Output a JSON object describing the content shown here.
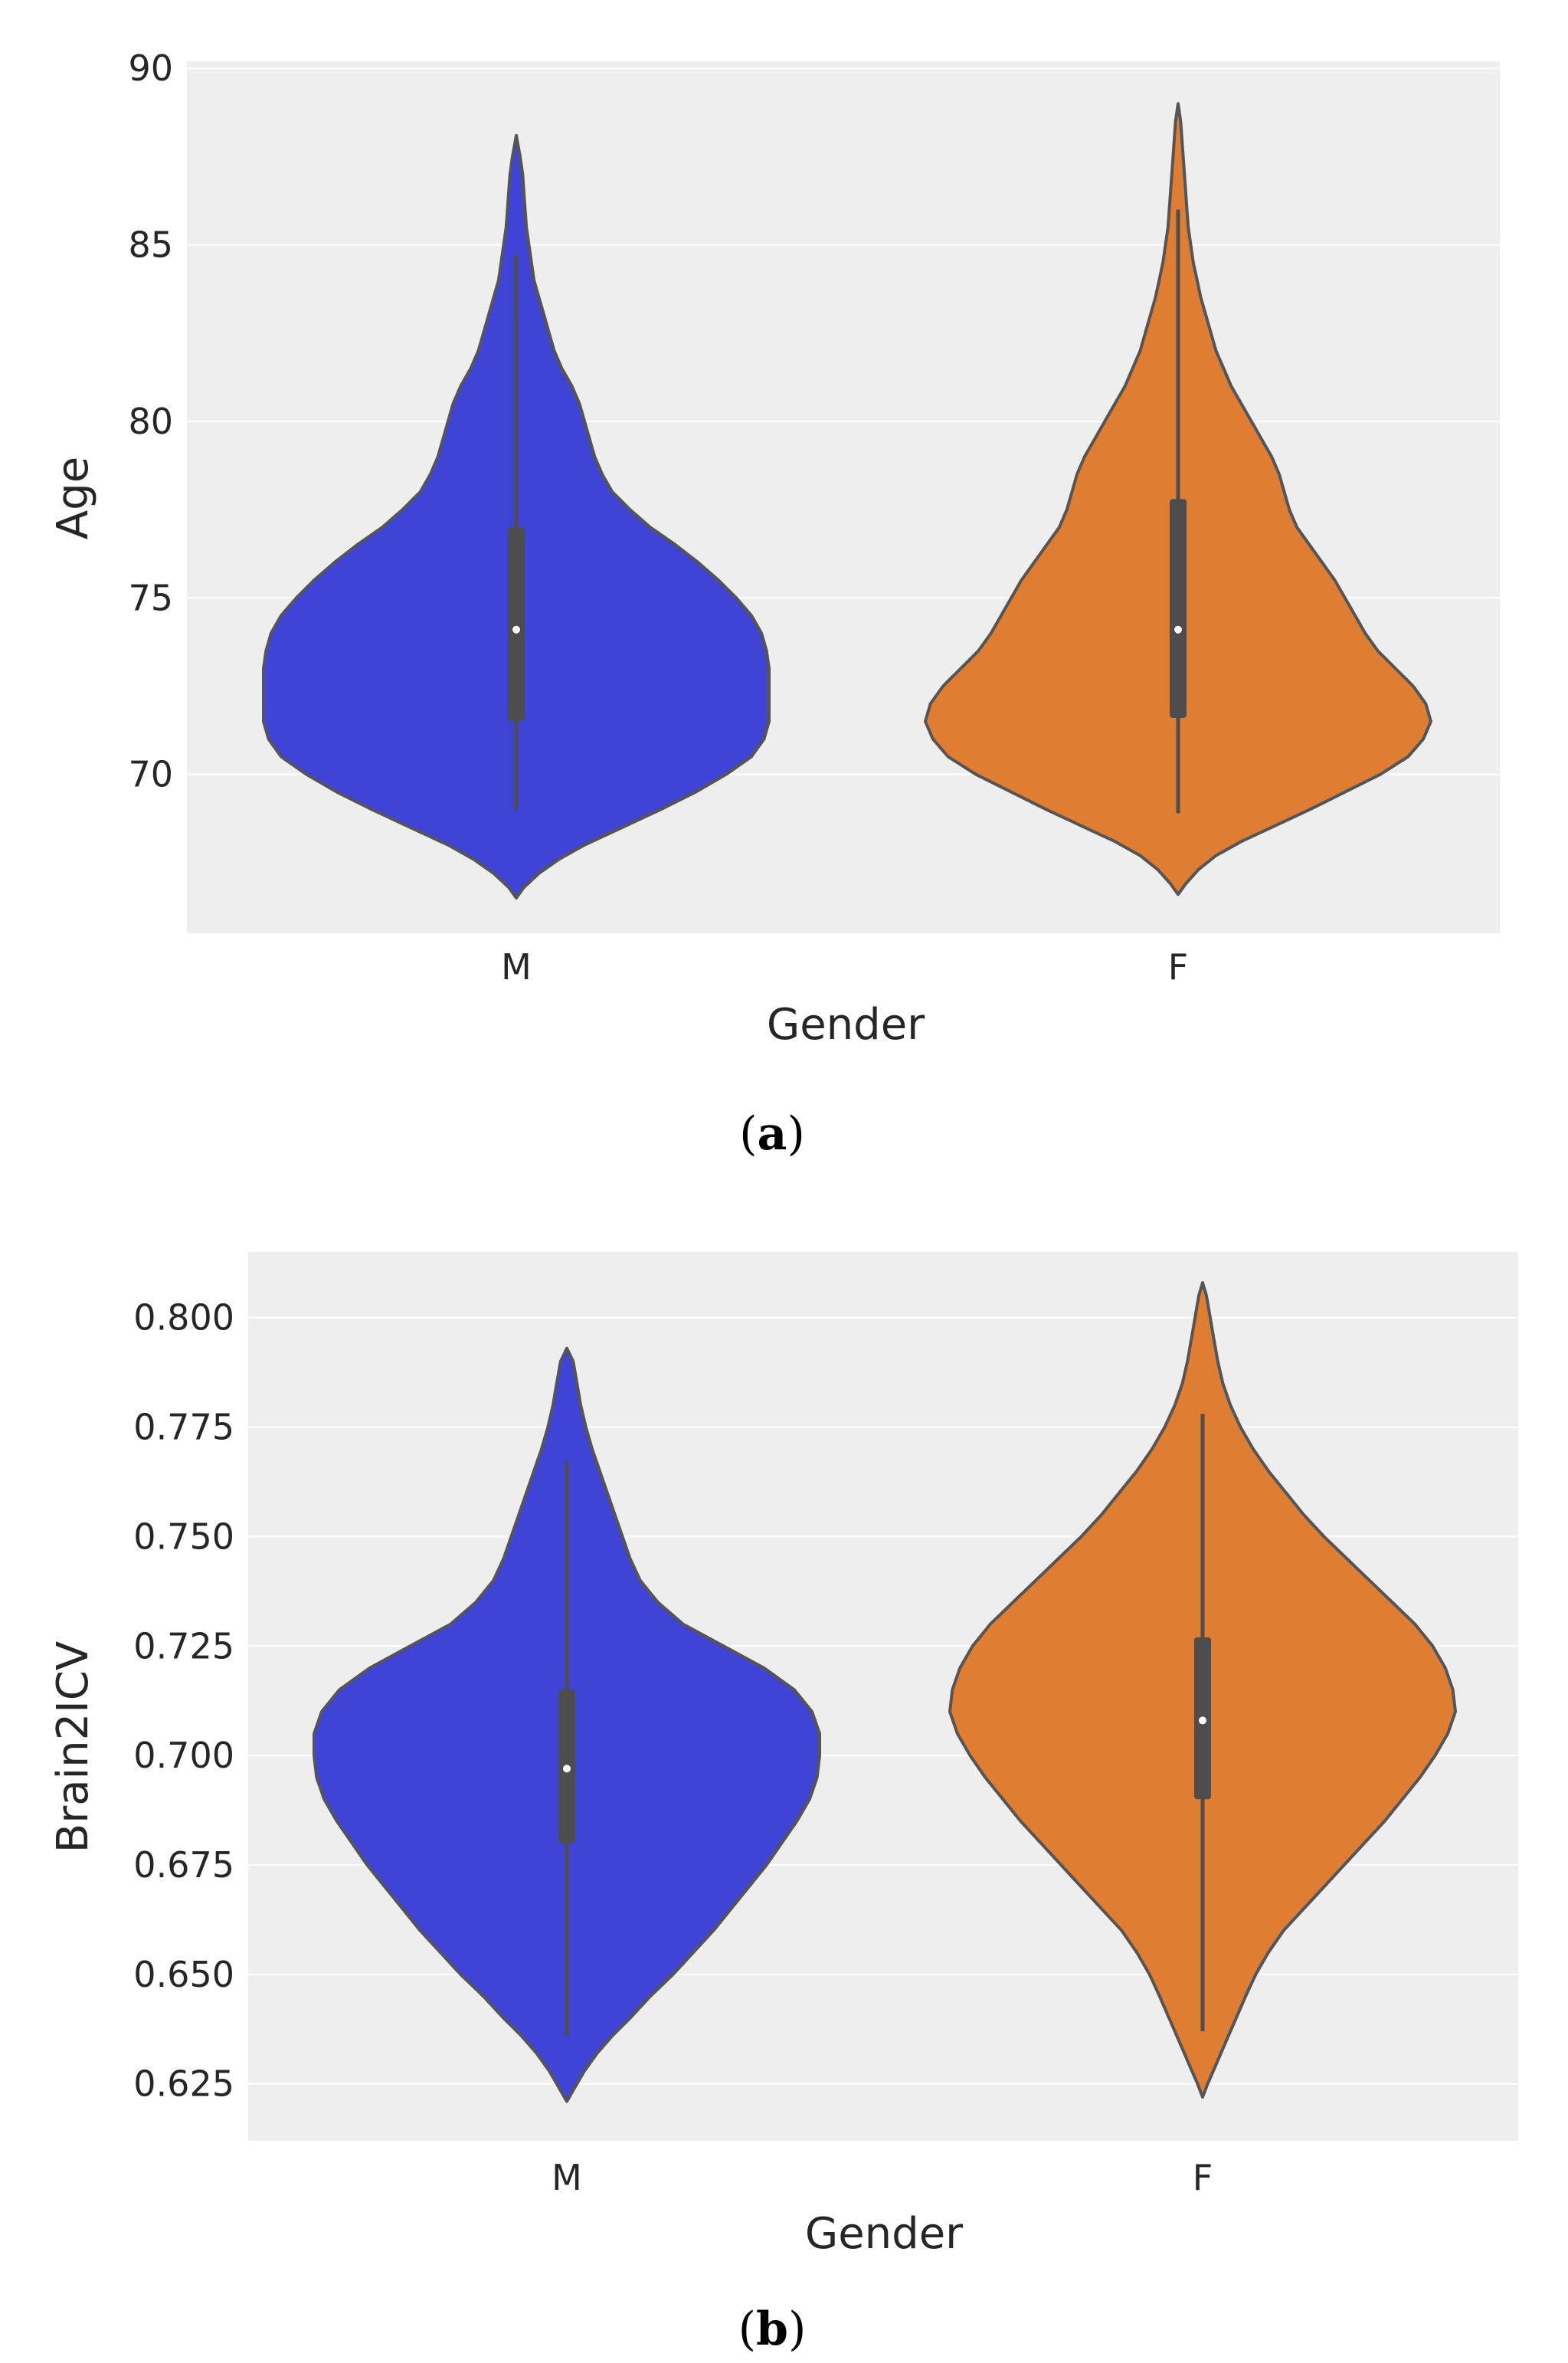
{
  "colors": {
    "male": "#3f44d7",
    "female": "#df7e33",
    "background": "#eeeeee",
    "grid": "#ffffff",
    "outline": "#555555",
    "box": "#4d4d4d"
  },
  "chart_data": [
    {
      "type": "violin",
      "panel_label": "a",
      "xlabel": "Gender",
      "ylabel": "Age",
      "categories": [
        "M",
        "F"
      ],
      "ylim": [
        65.5,
        90.2
      ],
      "yticks": [
        "70",
        "75",
        "80",
        "85",
        "90"
      ],
      "ytick_values": [
        70,
        75,
        80,
        85,
        90
      ],
      "series": [
        {
          "name": "M",
          "min": 66.5,
          "max": 88.1,
          "median": 74.1,
          "q1": 71.5,
          "q3": 77.0,
          "whisker_low": 69.0,
          "whisker_high": 84.7,
          "density": [
            [
              66.5,
              0
            ],
            [
              66.8,
              0.03
            ],
            [
              67.2,
              0.09
            ],
            [
              67.6,
              0.17
            ],
            [
              68.0,
              0.27
            ],
            [
              68.5,
              0.42
            ],
            [
              69.0,
              0.57
            ],
            [
              69.5,
              0.71
            ],
            [
              70.0,
              0.83
            ],
            [
              70.5,
              0.93
            ],
            [
              71.0,
              0.98
            ],
            [
              71.5,
              1.0
            ],
            [
              72.0,
              1.0
            ],
            [
              72.5,
              1.0
            ],
            [
              73.0,
              1.0
            ],
            [
              73.5,
              0.99
            ],
            [
              74.0,
              0.97
            ],
            [
              74.5,
              0.93
            ],
            [
              75.0,
              0.87
            ],
            [
              75.5,
              0.8
            ],
            [
              76.0,
              0.72
            ],
            [
              76.5,
              0.63
            ],
            [
              77.0,
              0.53
            ],
            [
              77.5,
              0.45
            ],
            [
              78.0,
              0.38
            ],
            [
              78.5,
              0.34
            ],
            [
              79.0,
              0.31
            ],
            [
              79.5,
              0.29
            ],
            [
              80.0,
              0.27
            ],
            [
              80.5,
              0.25
            ],
            [
              81.0,
              0.22
            ],
            [
              81.5,
              0.18
            ],
            [
              82.0,
              0.15
            ],
            [
              82.5,
              0.13
            ],
            [
              83.0,
              0.11
            ],
            [
              83.5,
              0.09
            ],
            [
              84.0,
              0.07
            ],
            [
              84.5,
              0.06
            ],
            [
              85.0,
              0.05
            ],
            [
              85.5,
              0.04
            ],
            [
              86.0,
              0.035
            ],
            [
              86.5,
              0.03
            ],
            [
              87.0,
              0.025
            ],
            [
              87.5,
              0.015
            ],
            [
              88.1,
              0
            ]
          ]
        },
        {
          "name": "F",
          "min": 66.6,
          "max": 89.0,
          "median": 74.1,
          "q1": 71.6,
          "q3": 77.8,
          "whisker_low": 68.9,
          "whisker_high": 86.0,
          "density": [
            [
              66.6,
              0
            ],
            [
              66.9,
              0.03
            ],
            [
              67.3,
              0.08
            ],
            [
              67.7,
              0.15
            ],
            [
              68.1,
              0.25
            ],
            [
              68.5,
              0.37
            ],
            [
              69.0,
              0.52
            ],
            [
              69.5,
              0.66
            ],
            [
              70.0,
              0.8
            ],
            [
              70.5,
              0.91
            ],
            [
              71.0,
              0.97
            ],
            [
              71.5,
              1.0
            ],
            [
              72.0,
              0.98
            ],
            [
              72.5,
              0.93
            ],
            [
              73.0,
              0.86
            ],
            [
              73.5,
              0.79
            ],
            [
              74.0,
              0.74
            ],
            [
              74.5,
              0.7
            ],
            [
              75.0,
              0.66
            ],
            [
              75.5,
              0.62
            ],
            [
              76.0,
              0.57
            ],
            [
              76.5,
              0.52
            ],
            [
              77.0,
              0.47
            ],
            [
              77.5,
              0.44
            ],
            [
              78.0,
              0.42
            ],
            [
              78.5,
              0.4
            ],
            [
              79.0,
              0.37
            ],
            [
              79.5,
              0.33
            ],
            [
              80.0,
              0.29
            ],
            [
              80.5,
              0.25
            ],
            [
              81.0,
              0.21
            ],
            [
              81.5,
              0.18
            ],
            [
              82.0,
              0.15
            ],
            [
              82.5,
              0.13
            ],
            [
              83.0,
              0.11
            ],
            [
              83.5,
              0.09
            ],
            [
              84.0,
              0.075
            ],
            [
              84.5,
              0.06
            ],
            [
              85.0,
              0.05
            ],
            [
              85.5,
              0.04
            ],
            [
              86.0,
              0.035
            ],
            [
              86.5,
              0.03
            ],
            [
              87.0,
              0.025
            ],
            [
              87.5,
              0.02
            ],
            [
              88.0,
              0.015
            ],
            [
              88.5,
              0.01
            ],
            [
              89.0,
              0
            ]
          ]
        }
      ]
    },
    {
      "type": "violin",
      "panel_label": "b",
      "xlabel": "Gender",
      "ylabel": "Brain2ICV",
      "categories": [
        "M",
        "F"
      ],
      "ylim": [
        0.612,
        0.815
      ],
      "yticks": [
        "0.625",
        "0.650",
        "0.675",
        "0.700",
        "0.725",
        "0.750",
        "0.775",
        "0.800"
      ],
      "ytick_values": [
        0.625,
        0.65,
        0.675,
        0.7,
        0.725,
        0.75,
        0.775,
        0.8
      ],
      "series": [
        {
          "name": "M",
          "min": 0.621,
          "max": 0.793,
          "median": 0.697,
          "q1": 0.68,
          "q3": 0.715,
          "whisker_low": 0.636,
          "whisker_high": 0.767,
          "density": [
            [
              0.621,
              0
            ],
            [
              0.624,
              0.03
            ],
            [
              0.628,
              0.07
            ],
            [
              0.632,
              0.12
            ],
            [
              0.636,
              0.18
            ],
            [
              0.64,
              0.25
            ],
            [
              0.645,
              0.33
            ],
            [
              0.65,
              0.42
            ],
            [
              0.655,
              0.5
            ],
            [
              0.66,
              0.58
            ],
            [
              0.665,
              0.65
            ],
            [
              0.67,
              0.72
            ],
            [
              0.675,
              0.79
            ],
            [
              0.68,
              0.85
            ],
            [
              0.685,
              0.91
            ],
            [
              0.69,
              0.96
            ],
            [
              0.695,
              0.99
            ],
            [
              0.7,
              1.0
            ],
            [
              0.705,
              1.0
            ],
            [
              0.71,
              0.97
            ],
            [
              0.715,
              0.9
            ],
            [
              0.72,
              0.78
            ],
            [
              0.725,
              0.62
            ],
            [
              0.73,
              0.46
            ],
            [
              0.735,
              0.36
            ],
            [
              0.74,
              0.29
            ],
            [
              0.745,
              0.25
            ],
            [
              0.75,
              0.22
            ],
            [
              0.755,
              0.19
            ],
            [
              0.76,
              0.16
            ],
            [
              0.765,
              0.13
            ],
            [
              0.77,
              0.1
            ],
            [
              0.775,
              0.075
            ],
            [
              0.78,
              0.055
            ],
            [
              0.785,
              0.04
            ],
            [
              0.79,
              0.025
            ],
            [
              0.793,
              0
            ]
          ]
        },
        {
          "name": "F",
          "min": 0.622,
          "max": 0.808,
          "median": 0.708,
          "q1": 0.69,
          "q3": 0.727,
          "whisker_low": 0.637,
          "whisker_high": 0.778,
          "density": [
            [
              0.622,
              0
            ],
            [
              0.625,
              0.02
            ],
            [
              0.629,
              0.05
            ],
            [
              0.633,
              0.08
            ],
            [
              0.637,
              0.11
            ],
            [
              0.641,
              0.14
            ],
            [
              0.645,
              0.17
            ],
            [
              0.65,
              0.21
            ],
            [
              0.655,
              0.26
            ],
            [
              0.66,
              0.32
            ],
            [
              0.665,
              0.4
            ],
            [
              0.67,
              0.48
            ],
            [
              0.675,
              0.56
            ],
            [
              0.68,
              0.64
            ],
            [
              0.685,
              0.72
            ],
            [
              0.69,
              0.79
            ],
            [
              0.695,
              0.86
            ],
            [
              0.7,
              0.92
            ],
            [
              0.705,
              0.97
            ],
            [
              0.71,
              1.0
            ],
            [
              0.715,
              0.99
            ],
            [
              0.72,
              0.96
            ],
            [
              0.725,
              0.91
            ],
            [
              0.73,
              0.84
            ],
            [
              0.735,
              0.75
            ],
            [
              0.74,
              0.66
            ],
            [
              0.745,
              0.57
            ],
            [
              0.75,
              0.48
            ],
            [
              0.755,
              0.4
            ],
            [
              0.76,
              0.33
            ],
            [
              0.765,
              0.26
            ],
            [
              0.77,
              0.2
            ],
            [
              0.775,
              0.15
            ],
            [
              0.78,
              0.11
            ],
            [
              0.785,
              0.08
            ],
            [
              0.79,
              0.06
            ],
            [
              0.795,
              0.045
            ],
            [
              0.8,
              0.03
            ],
            [
              0.805,
              0.015
            ],
            [
              0.808,
              0
            ]
          ]
        }
      ]
    }
  ]
}
